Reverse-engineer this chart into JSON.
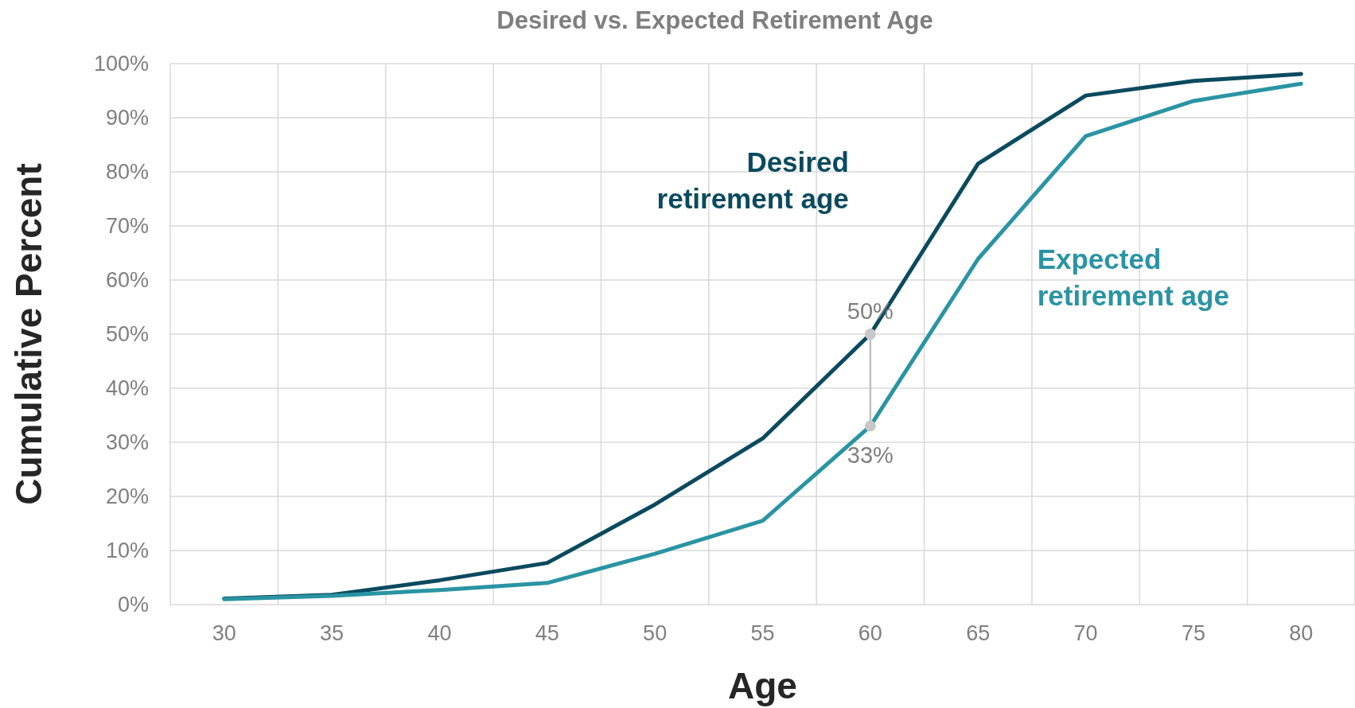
{
  "chart_data": {
    "type": "line",
    "title": "Desired vs. Expected Retirement Age",
    "xlabel": "Age",
    "ylabel": "Cumulative Percent",
    "categories": [
      "30",
      "35",
      "40",
      "45",
      "50",
      "55",
      "60",
      "65",
      "70",
      "75",
      "80"
    ],
    "series": [
      {
        "name": "Desired retirement age",
        "color": "#0b4a5e",
        "values": [
          1.1,
          1.8,
          4.5,
          7.7,
          18.5,
          30.7,
          50,
          81.5,
          94.1,
          96.8,
          98.1
        ]
      },
      {
        "name": "Expected retirement age",
        "color": "#2a94a3",
        "values": [
          1,
          1.6,
          2.7,
          4,
          9.4,
          15.5,
          33,
          63.9,
          86.6,
          93.1,
          96.3
        ]
      }
    ],
    "ylim": [
      0,
      100
    ],
    "yticks": [
      {
        "value": 0,
        "label": "0%"
      },
      {
        "value": 10,
        "label": "10%"
      },
      {
        "value": 20,
        "label": "20%"
      },
      {
        "value": 30,
        "label": "30%"
      },
      {
        "value": 40,
        "label": "40%"
      },
      {
        "value": 50,
        "label": "50%"
      },
      {
        "value": 60,
        "label": "60%"
      },
      {
        "value": 70,
        "label": "70%"
      },
      {
        "value": 80,
        "label": "80%"
      },
      {
        "value": 90,
        "label": "90%"
      },
      {
        "value": 100,
        "label": "100%"
      }
    ],
    "grid": true,
    "legend": false,
    "marker": "none",
    "line_style": "solid",
    "annotations": [
      {
        "text": "50%",
        "x": "60",
        "y": 50
      },
      {
        "text": "33%",
        "x": "60",
        "y": 33
      }
    ]
  }
}
